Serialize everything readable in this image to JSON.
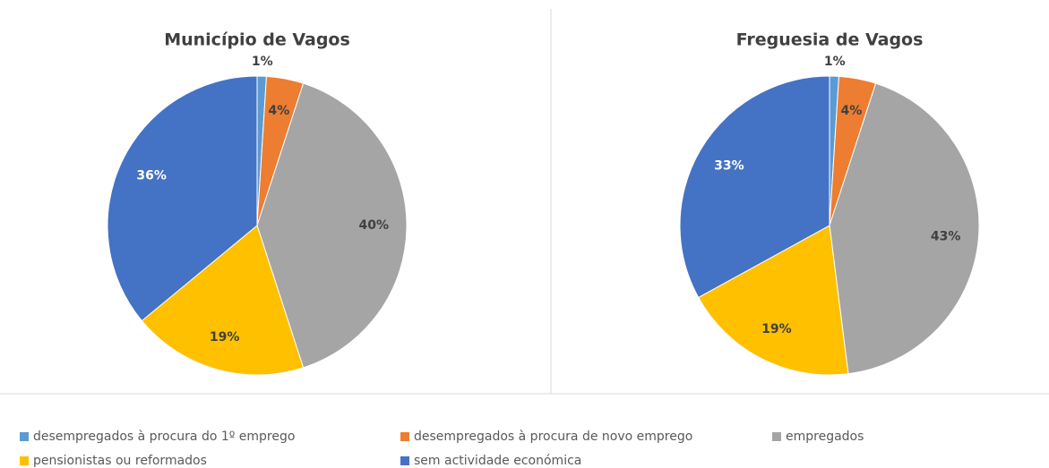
{
  "chart_data": [
    {
      "type": "pie",
      "title": "Município de Vagos",
      "categories": [
        "desempregados à procura do 1º emprego",
        "desempregados à procura de novo emprego",
        "empregados",
        "pensionistas ou reformados",
        "sem actividade económica"
      ],
      "values": [
        1,
        4,
        40,
        19,
        36
      ],
      "value_labels": [
        "1%",
        "4%",
        "40%",
        "19%",
        "36%"
      ],
      "colors": [
        "#5b9bd5",
        "#ed7d31",
        "#a5a5a5",
        "#ffc000",
        "#4472c4"
      ]
    },
    {
      "type": "pie",
      "title": "Freguesia de Vagos",
      "categories": [
        "desempregados à procura do 1º emprego",
        "desempregados à procura de novo emprego",
        "empregados",
        "pensionistas ou reformados",
        "sem actividade económica"
      ],
      "values": [
        1,
        4,
        43,
        19,
        33
      ],
      "value_labels": [
        "1%",
        "4%",
        "43%",
        "19%",
        "33%"
      ],
      "colors": [
        "#5b9bd5",
        "#ed7d31",
        "#a5a5a5",
        "#ffc000",
        "#4472c4"
      ]
    }
  ]
}
